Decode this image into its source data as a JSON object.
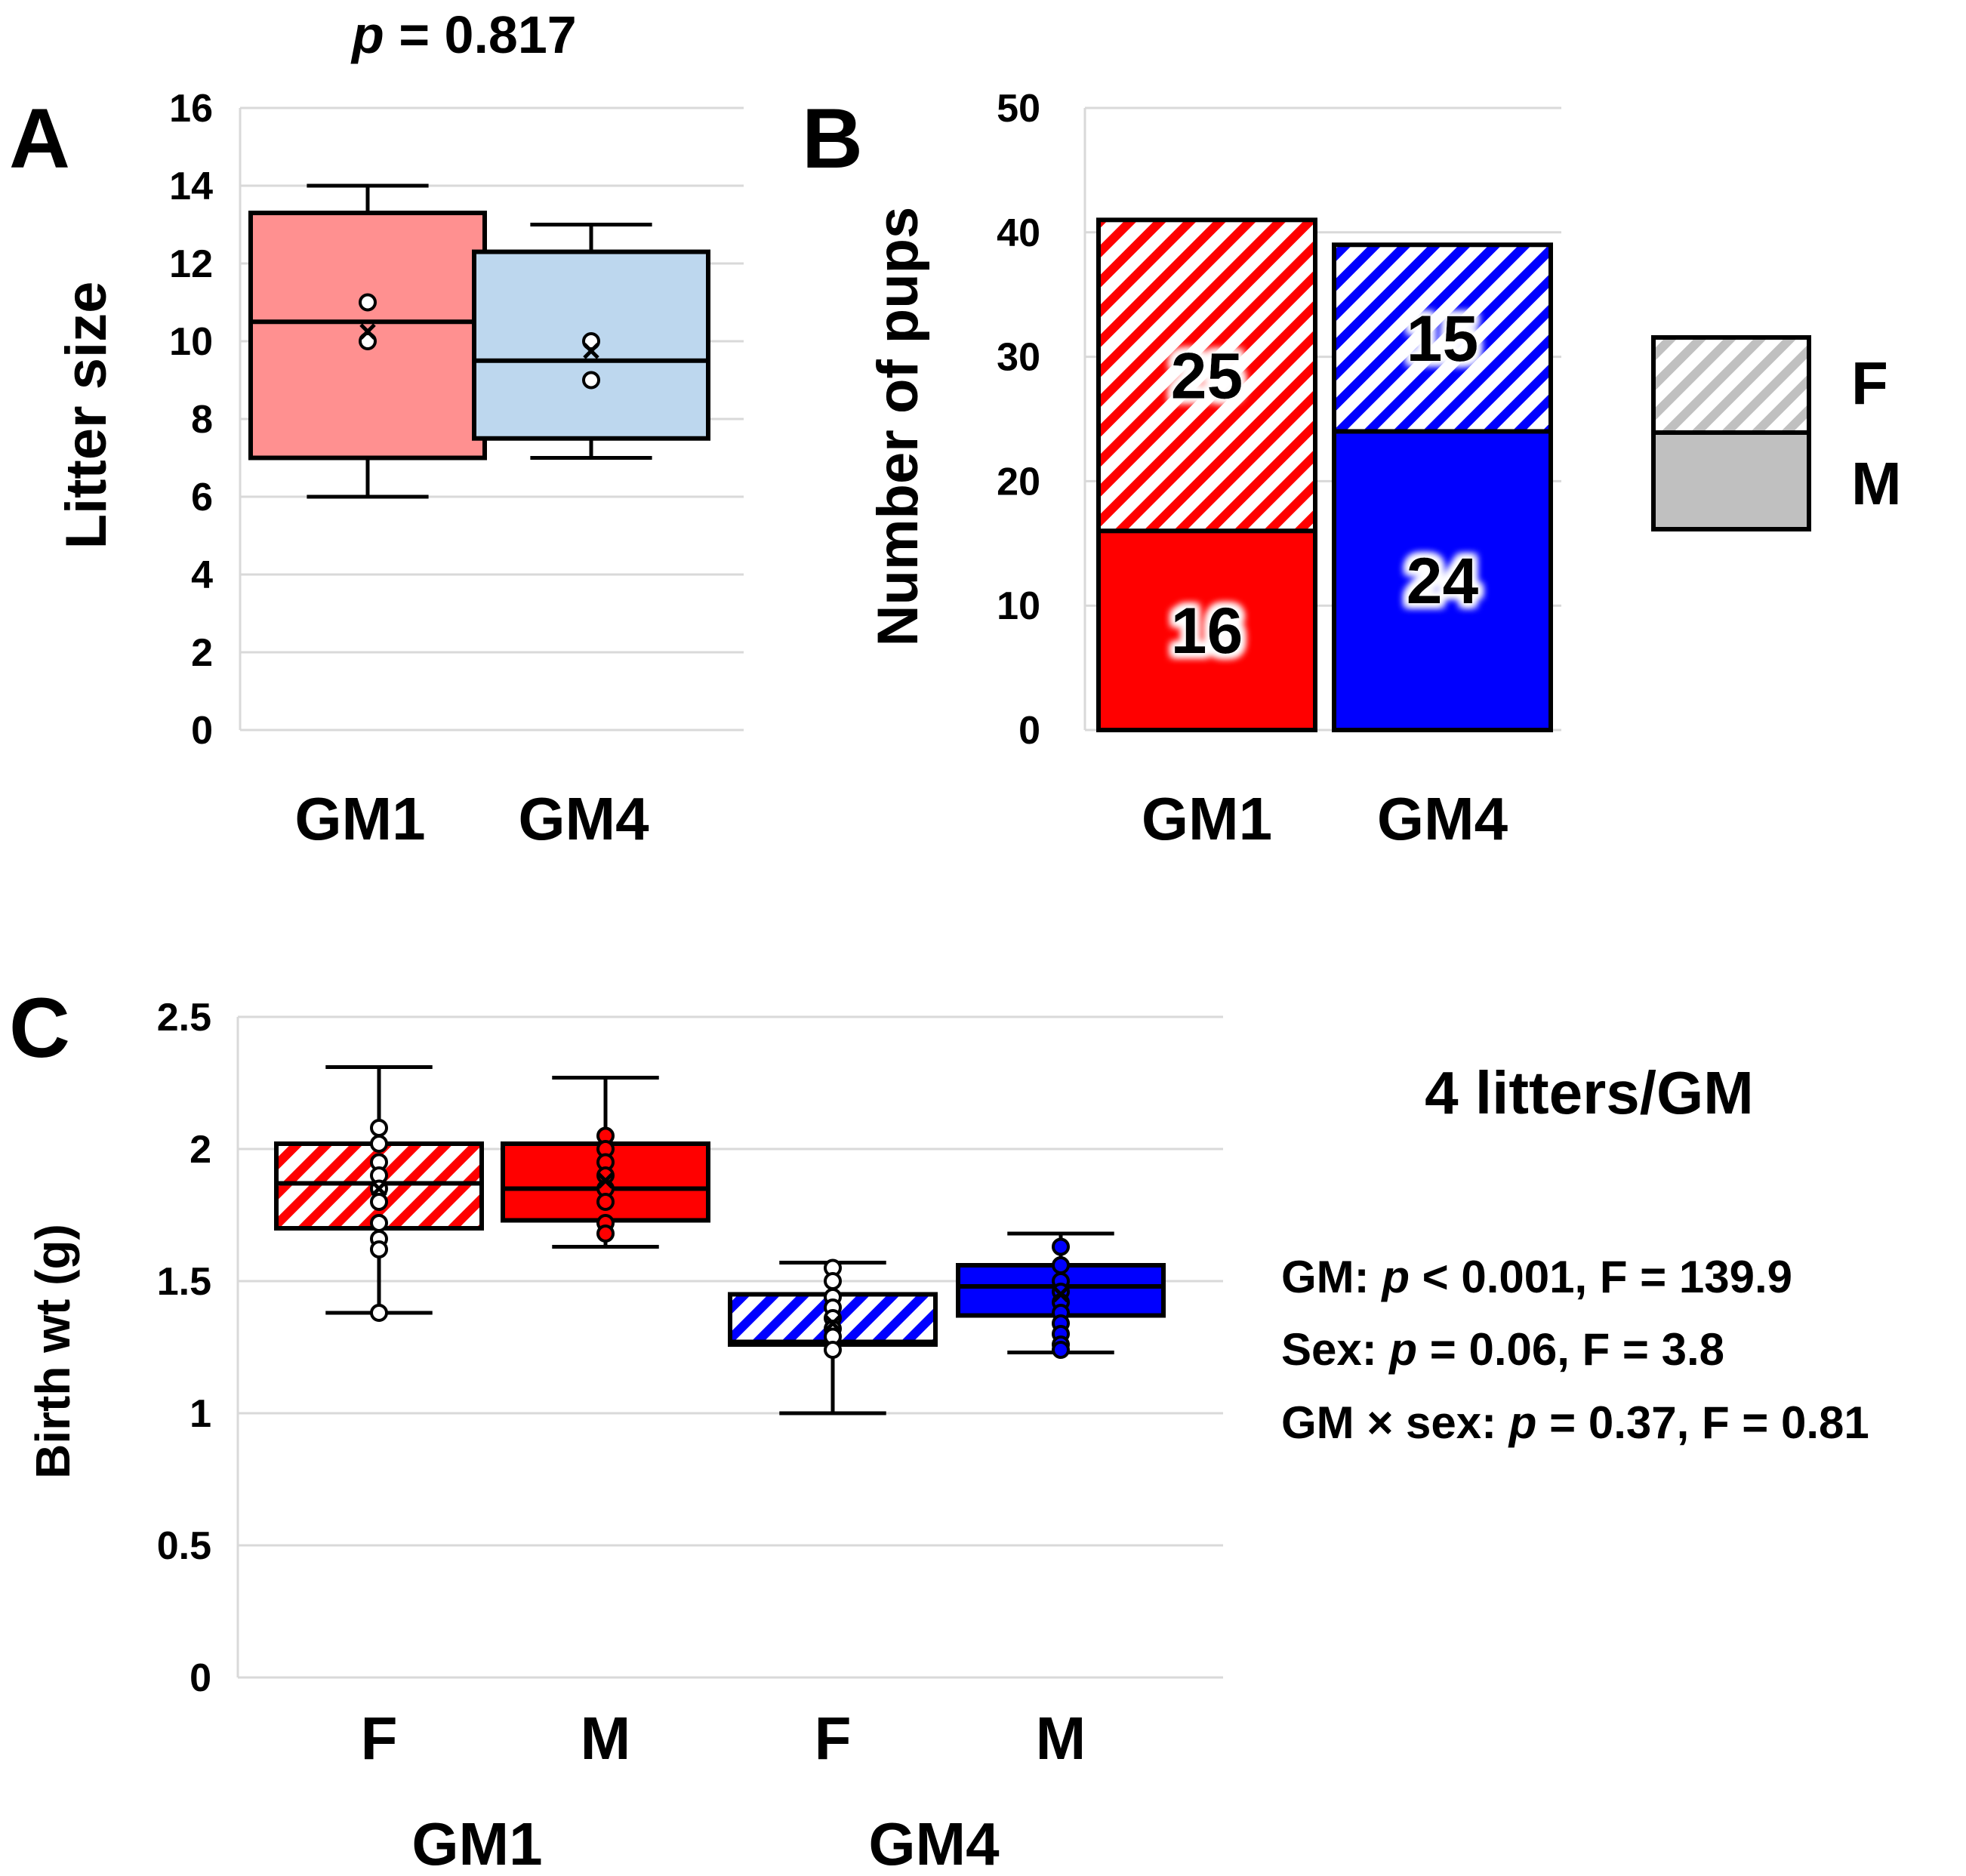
{
  "colors": {
    "gm1_red": "#ff0000",
    "gm4_blue": "#0000ff",
    "gm1_light": "#ff9090",
    "gm4_light": "#bdd7ee",
    "legend_gray": "#c0c0c0"
  },
  "chart_data": [
    {
      "panel": "A",
      "type": "box",
      "annotation": "p = 0.817",
      "annotation_italic": "p",
      "annotation_rest": " = 0.817",
      "ylabel": "Litter size",
      "ylim": [
        0,
        16
      ],
      "yticks": [
        "0",
        "2",
        "4",
        "6",
        "8",
        "10",
        "12",
        "14",
        "16"
      ],
      "categories": [
        "GM1",
        "GM4"
      ],
      "boxes": [
        {
          "name": "GM1",
          "min": 6,
          "q1": 7,
          "median": 10.5,
          "q3": 13.3,
          "max": 14,
          "mean": 10.25,
          "points": [
            11,
            10
          ],
          "fill": "#ff9090"
        },
        {
          "name": "GM4",
          "min": 7,
          "q1": 7.5,
          "median": 9.5,
          "q3": 12.3,
          "max": 13,
          "mean": 9.75,
          "points": [
            10,
            9
          ],
          "fill": "#bdd7ee"
        }
      ]
    },
    {
      "panel": "B",
      "type": "stacked-bar",
      "ylabel": "Number of pups",
      "ylim": [
        0,
        50
      ],
      "yticks": [
        "0",
        "10",
        "20",
        "30",
        "40",
        "50"
      ],
      "categories": [
        "GM1",
        "GM4"
      ],
      "series": [
        {
          "name": "M",
          "values": [
            16,
            24
          ],
          "pattern": "solid"
        },
        {
          "name": "F",
          "values": [
            25,
            15
          ],
          "pattern": "hatched"
        }
      ],
      "legend": [
        "F",
        "M"
      ],
      "legend_position": "right"
    },
    {
      "panel": "C",
      "type": "box",
      "ylabel": "Birth wt (g)",
      "ylim": [
        0,
        2.5
      ],
      "yticks": [
        "0",
        "0.5",
        "1",
        "1.5",
        "2",
        "2.5"
      ],
      "categories": [
        "F",
        "M",
        "F",
        "M"
      ],
      "groups": [
        "GM1",
        "GM4"
      ],
      "boxes": [
        {
          "group": "GM1",
          "sex": "F",
          "min": 1.38,
          "q1": 1.7,
          "median": 1.87,
          "q3": 2.02,
          "max": 2.31,
          "mean": 1.85,
          "points": [
            2.08,
            2.02,
            1.95,
            1.9,
            1.85,
            1.8,
            1.72,
            1.66,
            1.62,
            1.38
          ],
          "pattern": "hatched"
        },
        {
          "group": "GM1",
          "sex": "M",
          "min": 1.63,
          "q1": 1.73,
          "median": 1.85,
          "q3": 2.02,
          "max": 2.27,
          "mean": 1.88,
          "points": [
            2.05,
            2.0,
            1.95,
            1.9,
            1.85,
            1.8,
            1.72,
            1.68
          ],
          "pattern": "solid"
        },
        {
          "group": "GM4",
          "sex": "F",
          "min": 1.0,
          "q1": 1.26,
          "median": 1.27,
          "q3": 1.45,
          "max": 1.57,
          "mean": 1.34,
          "points": [
            1.55,
            1.5,
            1.44,
            1.4,
            1.36,
            1.32,
            1.29,
            1.24
          ],
          "pattern": "hatched"
        },
        {
          "group": "GM4",
          "sex": "M",
          "min": 1.23,
          "q1": 1.37,
          "median": 1.48,
          "q3": 1.56,
          "max": 1.68,
          "mean": 1.45,
          "points": [
            1.63,
            1.56,
            1.5,
            1.46,
            1.42,
            1.38,
            1.34,
            1.3,
            1.26,
            1.24
          ],
          "pattern": "solid"
        }
      ],
      "note": "4 litters/GM",
      "stats": [
        {
          "label": "GM: ",
          "italic": "p",
          "rest": " < 0.001, F = 139.9"
        },
        {
          "label": "Sex: ",
          "italic": "p",
          "rest": " = 0.06, F = 3.8"
        },
        {
          "label": "GM × sex: ",
          "italic": "p",
          "rest": " = 0.37, F = 0.81"
        }
      ]
    }
  ]
}
